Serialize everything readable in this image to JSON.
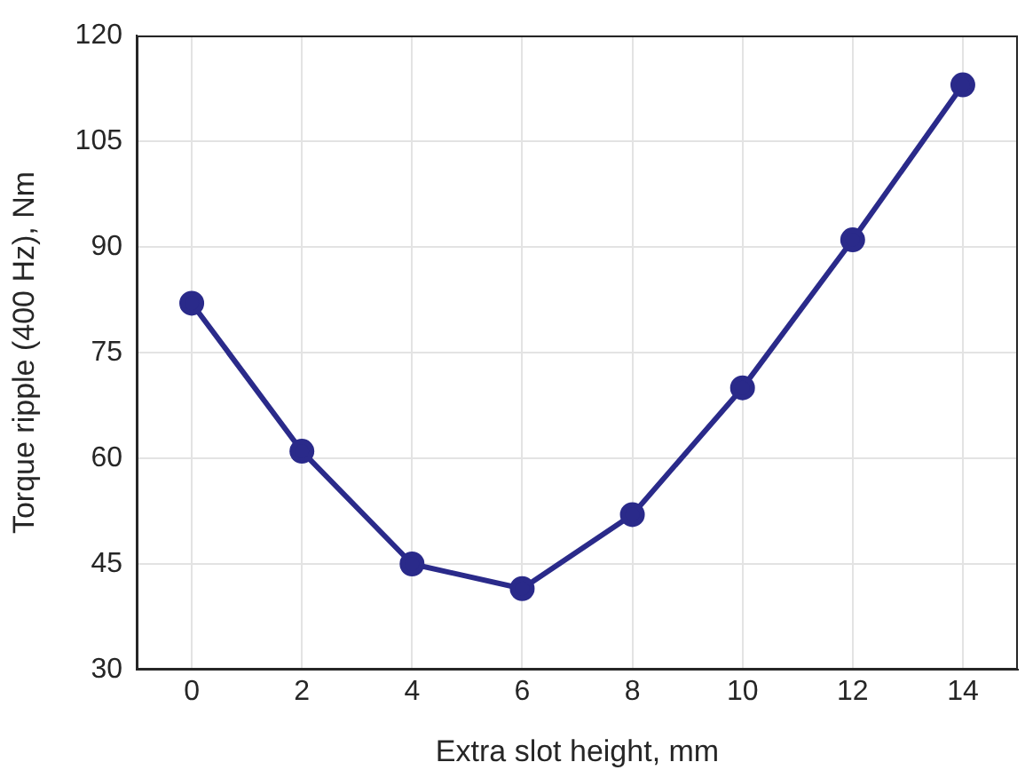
{
  "chart_data": {
    "type": "line",
    "xlabel": "Extra slot height, mm",
    "ylabel": "Torque ripple (400 Hz), Nm",
    "x": [
      0,
      2,
      4,
      6,
      8,
      10,
      12,
      14
    ],
    "series": [
      {
        "color": "#2a2a8a",
        "values": [
          82,
          61,
          45,
          41.5,
          52,
          70,
          91,
          113
        ]
      }
    ],
    "xlim": [
      -1,
      15
    ],
    "xticks": [
      0,
      2,
      4,
      6,
      8,
      10,
      12,
      14
    ],
    "ylim": [
      30,
      120
    ],
    "yticks": [
      30,
      45,
      60,
      75,
      90,
      105,
      120
    ],
    "grid": true,
    "legend": false,
    "marker": "circle",
    "line_style": "solid"
  }
}
